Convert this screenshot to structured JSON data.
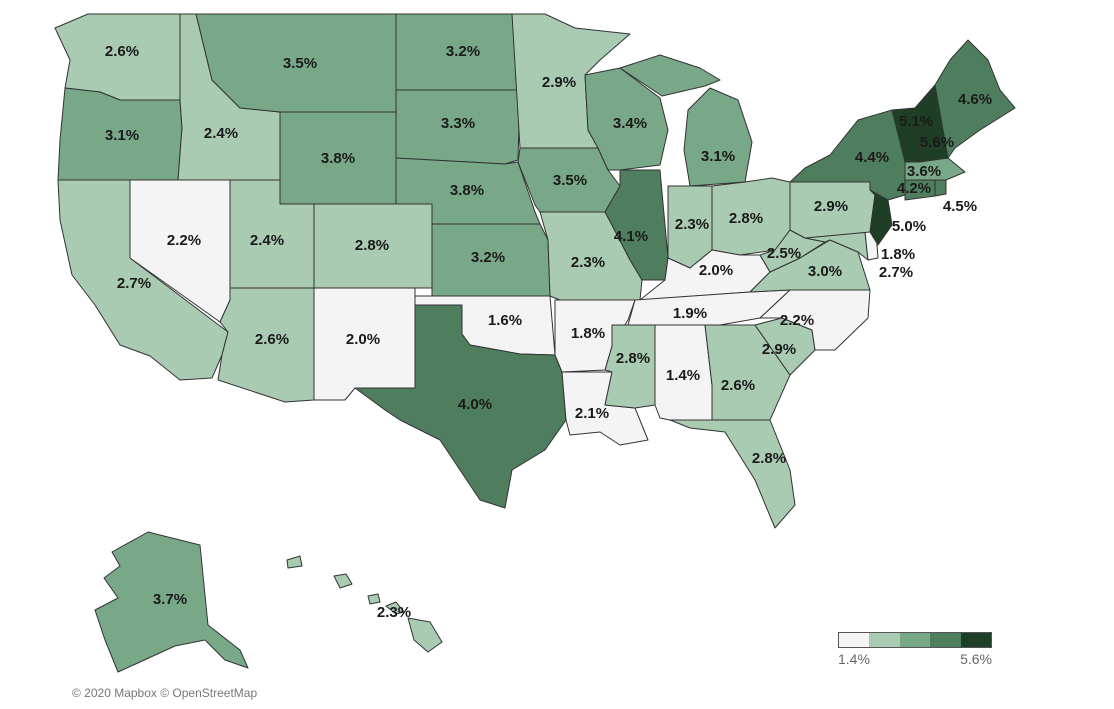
{
  "palette": [
    "#f4f4f4",
    "#a8cbb2",
    "#78a888",
    "#4f7e5e",
    "#1e3f26"
  ],
  "legend": {
    "min_label": "1.4%",
    "max_label": "5.6%",
    "min": 1.4,
    "max": 5.6
  },
  "attribution": "© 2020 Mapbox © OpenStreetMap",
  "states": [
    {
      "id": "WA",
      "label": "2.6%",
      "value": 2.6
    },
    {
      "id": "OR",
      "label": "3.1%",
      "value": 3.1
    },
    {
      "id": "CA",
      "label": "2.7%",
      "value": 2.7
    },
    {
      "id": "NV",
      "label": "2.2%",
      "value": 2.2
    },
    {
      "id": "ID",
      "label": "2.4%",
      "value": 2.4
    },
    {
      "id": "MT",
      "label": "3.5%",
      "value": 3.5
    },
    {
      "id": "WY",
      "label": "3.8%",
      "value": 3.8
    },
    {
      "id": "UT",
      "label": "2.4%",
      "value": 2.4
    },
    {
      "id": "AZ",
      "label": "2.6%",
      "value": 2.6
    },
    {
      "id": "CO",
      "label": "2.8%",
      "value": 2.8
    },
    {
      "id": "NM",
      "label": "2.0%",
      "value": 2.0
    },
    {
      "id": "ND",
      "label": "3.2%",
      "value": 3.2
    },
    {
      "id": "SD",
      "label": "3.3%",
      "value": 3.3
    },
    {
      "id": "NE",
      "label": "3.8%",
      "value": 3.8
    },
    {
      "id": "KS",
      "label": "3.2%",
      "value": 3.2
    },
    {
      "id": "OK",
      "label": "1.6%",
      "value": 1.6
    },
    {
      "id": "TX",
      "label": "4.0%",
      "value": 4.0
    },
    {
      "id": "MN",
      "label": "2.9%",
      "value": 2.9
    },
    {
      "id": "IA",
      "label": "3.5%",
      "value": 3.5
    },
    {
      "id": "MO",
      "label": "2.3%",
      "value": 2.3
    },
    {
      "id": "AR",
      "label": "1.8%",
      "value": 1.8
    },
    {
      "id": "LA",
      "label": "2.1%",
      "value": 2.1
    },
    {
      "id": "WI",
      "label": "3.4%",
      "value": 3.4
    },
    {
      "id": "IL",
      "label": "4.1%",
      "value": 4.1
    },
    {
      "id": "MI",
      "label": "3.1%",
      "value": 3.1
    },
    {
      "id": "IN",
      "label": "2.3%",
      "value": 2.3
    },
    {
      "id": "OH",
      "label": "2.8%",
      "value": 2.8
    },
    {
      "id": "KY",
      "label": "2.0%",
      "value": 2.0
    },
    {
      "id": "TN",
      "label": "1.9%",
      "value": 1.9
    },
    {
      "id": "MS",
      "label": "2.8%",
      "value": 2.8
    },
    {
      "id": "AL",
      "label": "1.4%",
      "value": 1.4
    },
    {
      "id": "GA",
      "label": "2.6%",
      "value": 2.6
    },
    {
      "id": "FL",
      "label": "2.8%",
      "value": 2.8
    },
    {
      "id": "SC",
      "label": "2.9%",
      "value": 2.9
    },
    {
      "id": "NC",
      "label": "2.2%",
      "value": 2.2
    },
    {
      "id": "VA",
      "label": "3.0%",
      "value": 3.0
    },
    {
      "id": "WV",
      "label": "2.5%",
      "value": 2.5
    },
    {
      "id": "PA",
      "label": "2.9%",
      "value": 2.9
    },
    {
      "id": "NY",
      "label": "4.4%",
      "value": 4.4
    },
    {
      "id": "NJ",
      "label": "5.0%",
      "value": 5.0
    },
    {
      "id": "DE",
      "label": "1.8%",
      "value": 1.8
    },
    {
      "id": "MD",
      "label": "2.7%",
      "value": 2.7
    },
    {
      "id": "CT",
      "label": "4.2%",
      "value": 4.2
    },
    {
      "id": "RI",
      "label": "4.5%",
      "value": 4.5
    },
    {
      "id": "MA",
      "label": "3.6%",
      "value": 3.6
    },
    {
      "id": "VT",
      "label": "5.1%",
      "value": 5.1
    },
    {
      "id": "NH",
      "label": "5.6%",
      "value": 5.6
    },
    {
      "id": "ME",
      "label": "4.6%",
      "value": 4.6
    },
    {
      "id": "AK",
      "label": "3.7%",
      "value": 3.7
    },
    {
      "id": "HI",
      "label": "2.3%",
      "value": 2.3
    }
  ]
}
